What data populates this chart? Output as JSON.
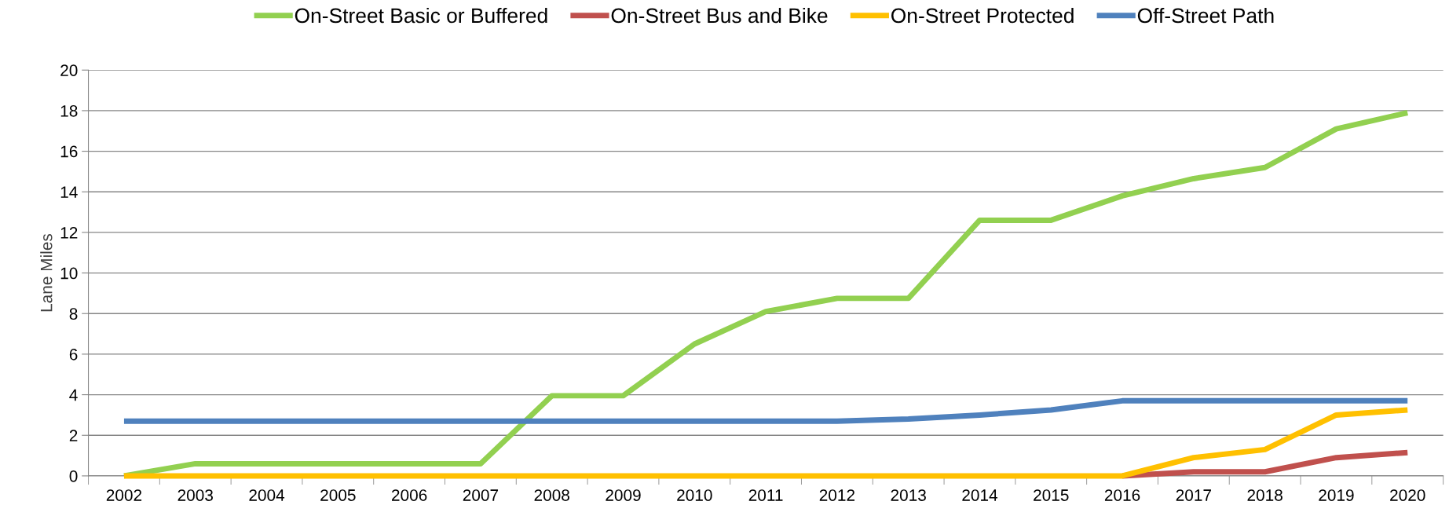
{
  "chart_data": {
    "type": "line",
    "ylabel": "Lane Miles",
    "categories": [
      "2002",
      "2003",
      "2004",
      "2005",
      "2006",
      "2007",
      "2008",
      "2009",
      "2010",
      "2011",
      "2012",
      "2013",
      "2014",
      "2015",
      "2016",
      "2017",
      "2018",
      "2019",
      "2020"
    ],
    "series": [
      {
        "name": "On-Street Basic or Buffered",
        "color": "#92d050",
        "values": [
          0,
          0.6,
          0.6,
          0.6,
          0.6,
          0.6,
          3.95,
          3.95,
          6.5,
          8.1,
          8.75,
          8.75,
          12.6,
          12.6,
          13.8,
          14.65,
          15.2,
          17.1,
          17.9
        ]
      },
      {
        "name": "On-Street Bus and Bike",
        "color": "#c0504d",
        "values": [
          null,
          null,
          null,
          null,
          null,
          null,
          null,
          null,
          null,
          null,
          null,
          null,
          null,
          null,
          0,
          0.2,
          0.2,
          0.9,
          1.15
        ]
      },
      {
        "name": "On-Street Protected",
        "color": "#ffc000",
        "values": [
          0,
          0,
          0,
          0,
          0,
          0,
          0,
          0,
          0,
          0,
          0,
          0,
          0,
          0,
          0,
          0.9,
          1.3,
          3.0,
          3.25
        ]
      },
      {
        "name": "Off-Street Path",
        "color": "#4f81bd",
        "values": [
          2.7,
          2.7,
          2.7,
          2.7,
          2.7,
          2.7,
          2.7,
          2.7,
          2.7,
          2.7,
          2.7,
          2.8,
          3.0,
          3.25,
          3.7,
          3.7,
          3.7,
          3.7,
          3.7
        ]
      }
    ],
    "ylim": [
      0,
      20
    ],
    "yticks": [
      0,
      2,
      4,
      6,
      8,
      10,
      12,
      14,
      16,
      18,
      20
    ],
    "grid": "y",
    "legend": "top",
    "marker": "none",
    "line_style": "solid"
  }
}
